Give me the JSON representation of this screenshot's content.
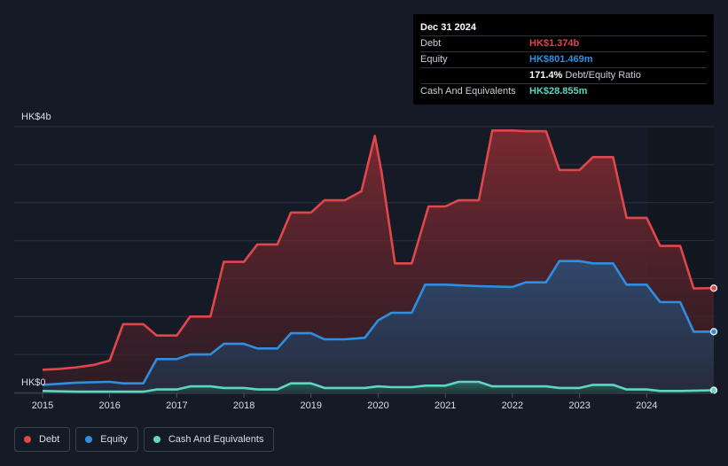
{
  "tooltip": {
    "date": "Dec 31 2024",
    "rows": [
      {
        "label": "Debt",
        "value": "HK$1.374b"
      },
      {
        "label": "Equity",
        "value": "HK$801.469m"
      },
      {
        "label": "",
        "ratio_value": "171.4%",
        "ratio_text": "Debt/Equity Ratio"
      },
      {
        "label": "Cash And Equivalents",
        "value": "HK$28.855m"
      }
    ]
  },
  "legend": [
    {
      "label": "Debt",
      "color": "#e0474b"
    },
    {
      "label": "Equity",
      "color": "#2e8fe0"
    },
    {
      "label": "Cash And Equivalents",
      "color": "#5ed6c0"
    }
  ],
  "chart_data": {
    "type": "area",
    "ylim": [
      0,
      3.5
    ],
    "xlim": [
      2015,
      2025
    ],
    "grid": true,
    "y_axis_labels": [
      {
        "value": 3.5,
        "label": "HK$4b"
      },
      {
        "value": 0,
        "label": "HK$0"
      }
    ],
    "x_ticks": [
      2015,
      2016,
      2017,
      2018,
      2019,
      2020,
      2021,
      2022,
      2023,
      2024
    ],
    "x_tick_labels": [
      "2015",
      "2016",
      "2017",
      "2018",
      "2019",
      "2020",
      "2021",
      "2022",
      "2023",
      "2024"
    ],
    "series": [
      {
        "name": "Debt",
        "color": "#e0474b",
        "x": [
          2015.0,
          2015.25,
          2015.5,
          2015.75,
          2016.0,
          2016.2,
          2016.5,
          2016.7,
          2017.0,
          2017.2,
          2017.5,
          2017.7,
          2018.0,
          2018.2,
          2018.5,
          2018.7,
          2019.0,
          2019.2,
          2019.5,
          2019.75,
          2019.95,
          2020.05,
          2020.25,
          2020.5,
          2020.75,
          2021.0,
          2021.2,
          2021.5,
          2021.7,
          2022.0,
          2022.2,
          2022.5,
          2022.7,
          2023.0,
          2023.2,
          2023.5,
          2023.7,
          2024.0,
          2024.2,
          2024.5,
          2024.7,
          2025.0
        ],
        "values": [
          0.3,
          0.31,
          0.33,
          0.36,
          0.42,
          0.9,
          0.9,
          0.75,
          0.75,
          1.0,
          1.0,
          1.72,
          1.72,
          1.95,
          1.95,
          2.37,
          2.37,
          2.53,
          2.53,
          2.65,
          3.38,
          2.9,
          1.7,
          1.7,
          2.45,
          2.45,
          2.53,
          2.53,
          3.45,
          3.45,
          3.44,
          3.44,
          2.93,
          2.93,
          3.1,
          3.1,
          2.3,
          2.3,
          1.93,
          1.93,
          1.37,
          1.374
        ]
      },
      {
        "name": "Equity",
        "color": "#2e8fe0",
        "x": [
          2015.0,
          2015.5,
          2016.0,
          2016.2,
          2016.5,
          2016.7,
          2017.0,
          2017.2,
          2017.5,
          2017.7,
          2018.0,
          2018.2,
          2018.5,
          2018.7,
          2019.0,
          2019.2,
          2019.5,
          2019.8,
          2020.0,
          2020.2,
          2020.5,
          2020.7,
          2021.0,
          2021.5,
          2022.0,
          2022.2,
          2022.5,
          2022.7,
          2023.0,
          2023.2,
          2023.5,
          2023.7,
          2024.0,
          2024.2,
          2024.5,
          2024.7,
          2025.0
        ],
        "values": [
          0.1,
          0.13,
          0.14,
          0.12,
          0.12,
          0.44,
          0.44,
          0.5,
          0.5,
          0.64,
          0.64,
          0.58,
          0.58,
          0.78,
          0.78,
          0.7,
          0.7,
          0.72,
          0.95,
          1.05,
          1.05,
          1.42,
          1.42,
          1.4,
          1.39,
          1.45,
          1.45,
          1.73,
          1.73,
          1.7,
          1.7,
          1.42,
          1.42,
          1.19,
          1.19,
          0.8,
          0.801
        ]
      },
      {
        "name": "Cash And Equivalents",
        "color": "#5ed6c0",
        "x": [
          2015.0,
          2015.5,
          2016.0,
          2016.5,
          2016.7,
          2017.0,
          2017.2,
          2017.5,
          2017.7,
          2018.0,
          2018.2,
          2018.5,
          2018.7,
          2019.0,
          2019.2,
          2019.5,
          2019.8,
          2020.0,
          2020.2,
          2020.5,
          2020.7,
          2021.0,
          2021.2,
          2021.5,
          2021.7,
          2022.0,
          2022.5,
          2022.7,
          2023.0,
          2023.2,
          2023.5,
          2023.7,
          2024.0,
          2024.2,
          2024.5,
          2025.0
        ],
        "values": [
          0.02,
          0.01,
          0.01,
          0.01,
          0.04,
          0.04,
          0.08,
          0.08,
          0.06,
          0.06,
          0.04,
          0.04,
          0.12,
          0.12,
          0.06,
          0.06,
          0.06,
          0.08,
          0.07,
          0.07,
          0.09,
          0.09,
          0.14,
          0.14,
          0.08,
          0.08,
          0.08,
          0.06,
          0.06,
          0.1,
          0.1,
          0.04,
          0.04,
          0.02,
          0.02,
          0.029
        ]
      }
    ]
  }
}
